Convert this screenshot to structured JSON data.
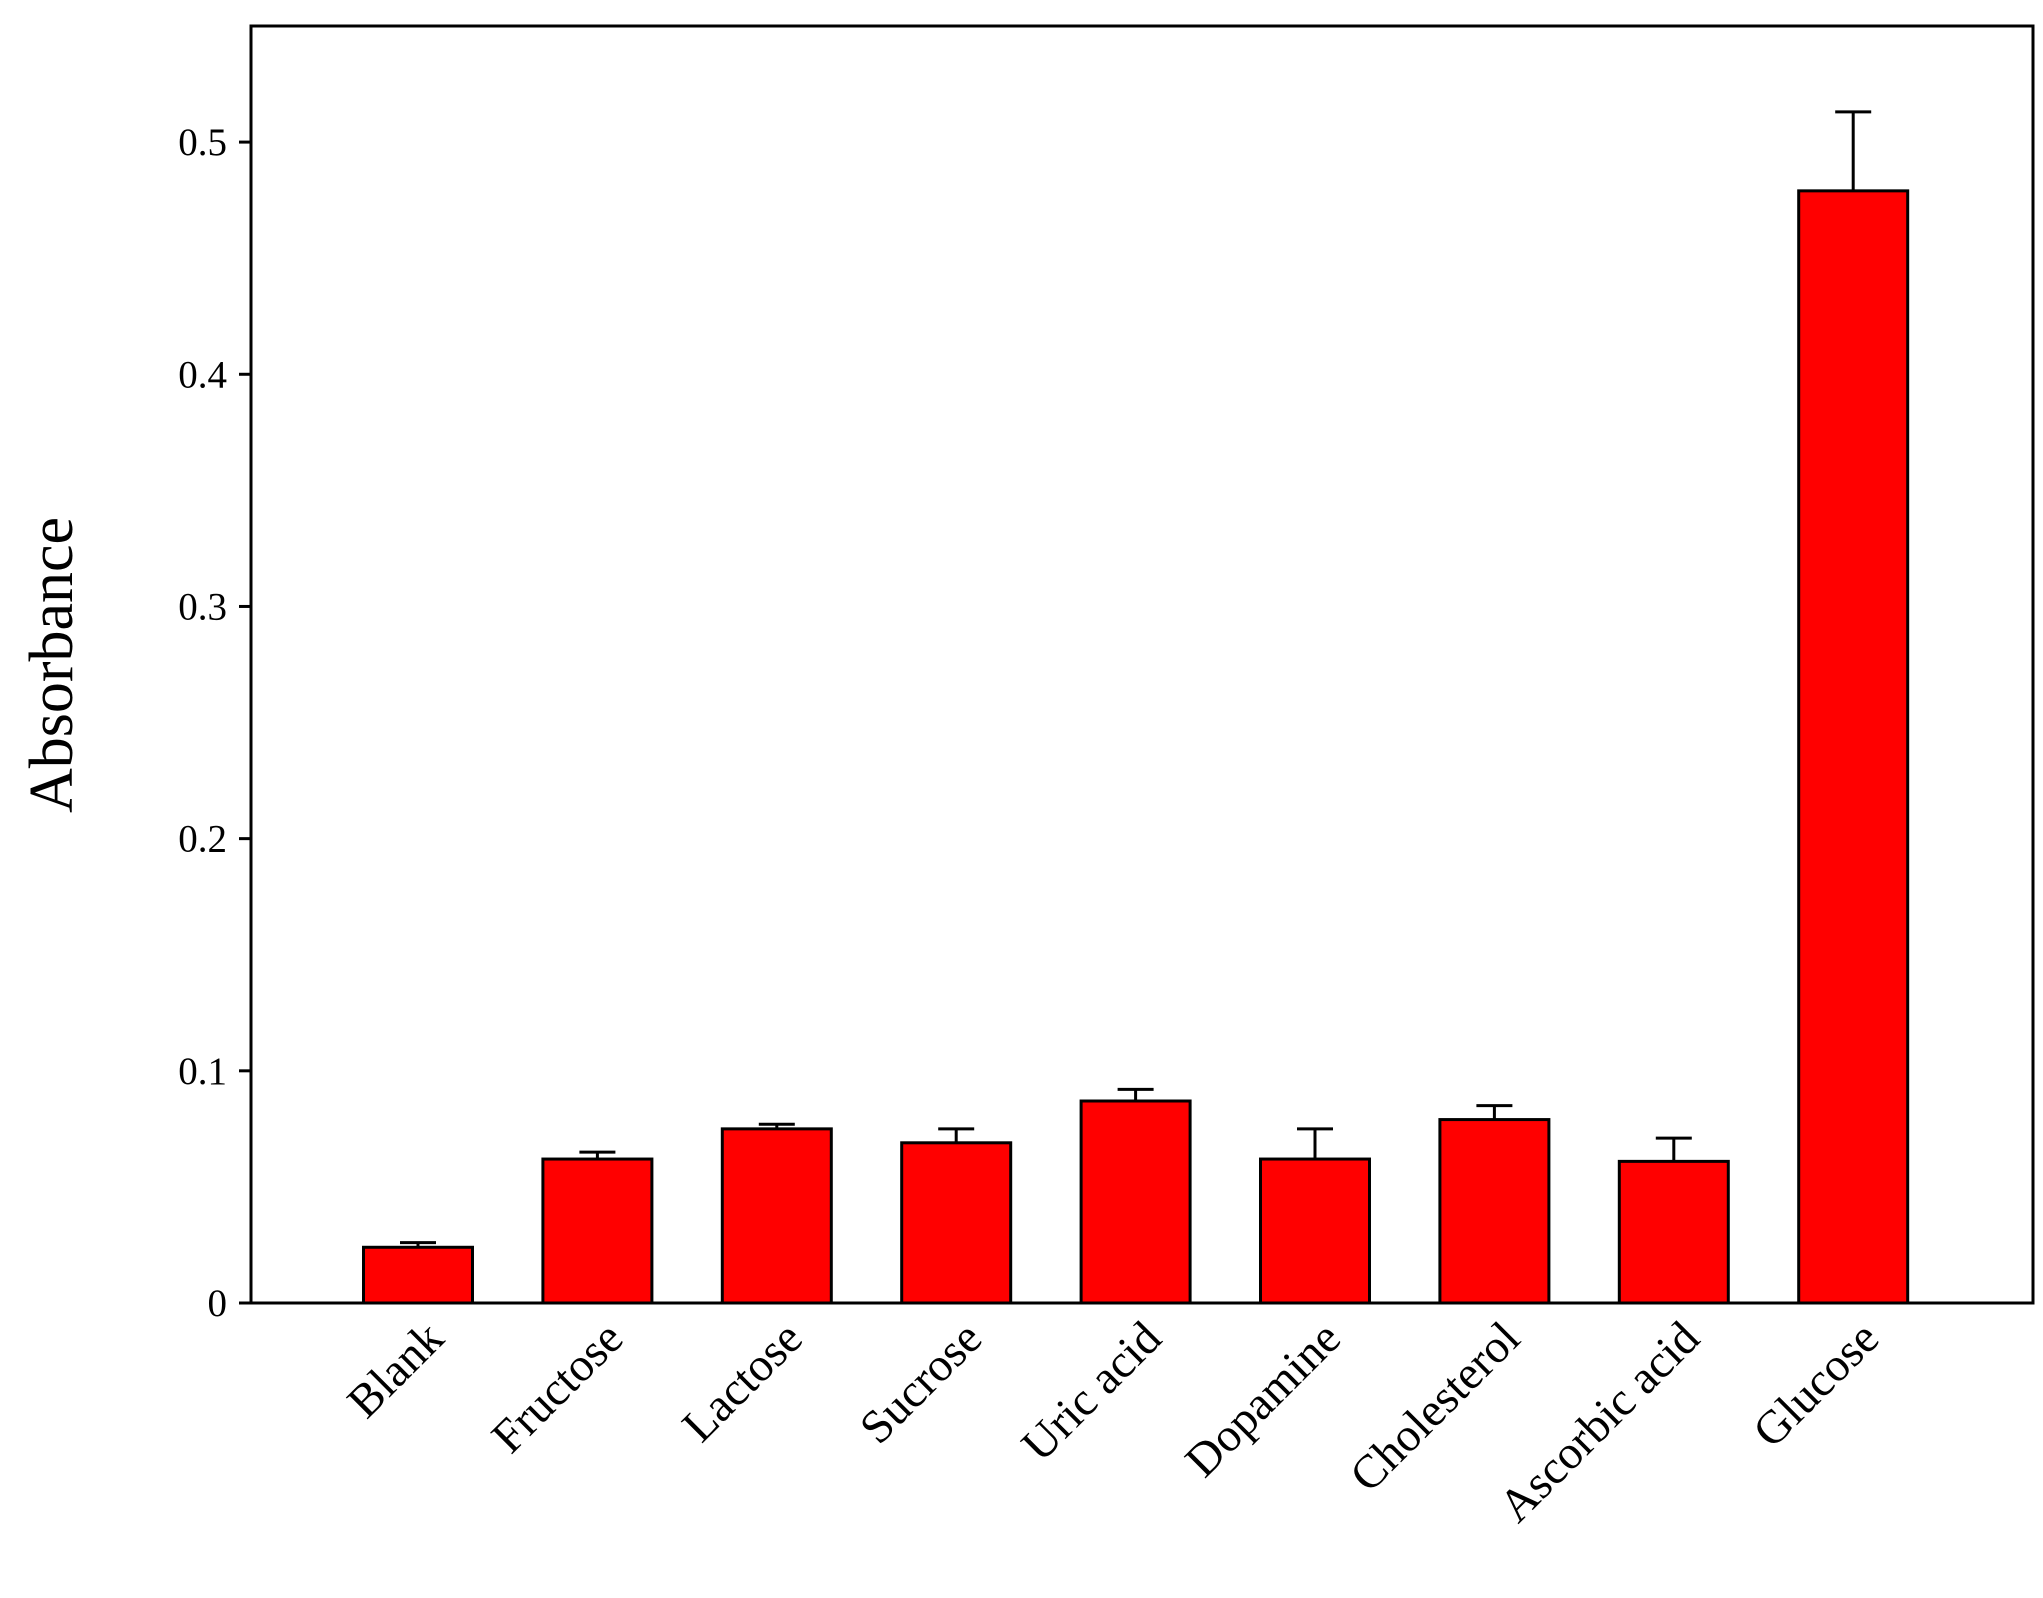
{
  "chart_data": {
    "type": "bar",
    "y_label": "Absorbance",
    "categories": [
      "Blank",
      "Fructose",
      "Lactose",
      "Sucrose",
      "Uric acid",
      "Dopamine",
      "Cholesterol",
      "Ascorbic acid",
      "Glucose"
    ],
    "values": [
      0.024,
      0.062,
      0.075,
      0.069,
      0.087,
      0.062,
      0.079,
      0.061,
      0.479
    ],
    "errors": [
      0.002,
      0.003,
      0.002,
      0.006,
      0.005,
      0.013,
      0.006,
      0.01,
      0.034
    ],
    "color": "#ff0000",
    "ylim": [
      0,
      0.55
    ],
    "yticks": [
      0,
      0.1,
      0.2,
      0.3,
      0.4,
      0.5
    ],
    "grid": false
  }
}
